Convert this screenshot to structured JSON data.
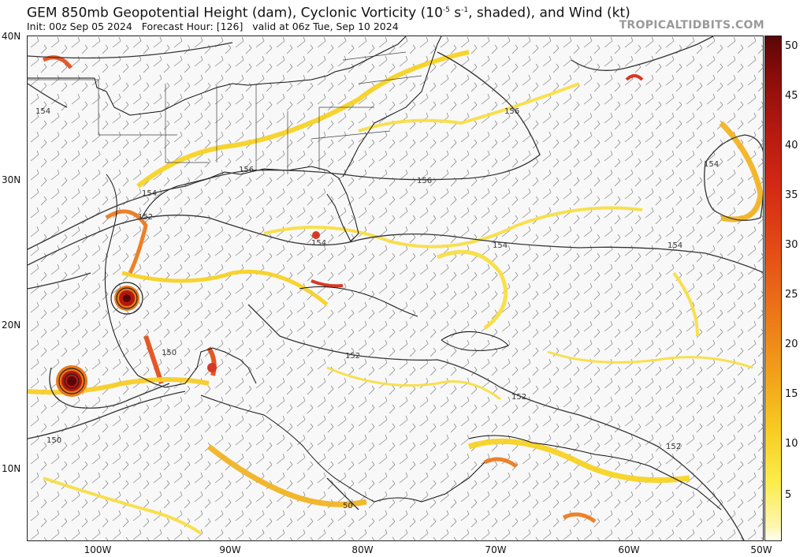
{
  "header": {
    "title_main": "GEM 850mb Geopotential Height (dam), Cyclonic Vorticity (10",
    "title_exp": "-5",
    "title_rest": " s",
    "title_exp2": "-1",
    "title_end": ", shaded), and Wind (kt)",
    "init": "Init: 00z Sep 05 2024",
    "forecast_hour": "Forecast Hour: [126]",
    "valid": "valid at 06z Tue, Sep 10 2024",
    "credit": "TROPICALTIDBITS.COM"
  },
  "axes": {
    "lat_labels": [
      "40N",
      "30N",
      "20N",
      "10N"
    ],
    "lon_labels": [
      "100W",
      "90W",
      "80W",
      "70W",
      "60W",
      "50W"
    ]
  },
  "colorbar": {
    "labels": [
      "50",
      "45",
      "40",
      "35",
      "30",
      "25",
      "20",
      "15",
      "10",
      "5"
    ],
    "colors": [
      "#fdf6b0",
      "#fcec4a",
      "#f7cc22",
      "#f2a11a",
      "#ec7718",
      "#e34b16",
      "#d42a14",
      "#b21810",
      "#8a0d0a",
      "#5a0606"
    ]
  },
  "contour_labels": [
    "154",
    "156",
    "156",
    "154",
    "152",
    "156",
    "154",
    "154",
    "154",
    "154",
    "152",
    "150",
    "152",
    "152",
    "150",
    "50"
  ]
}
